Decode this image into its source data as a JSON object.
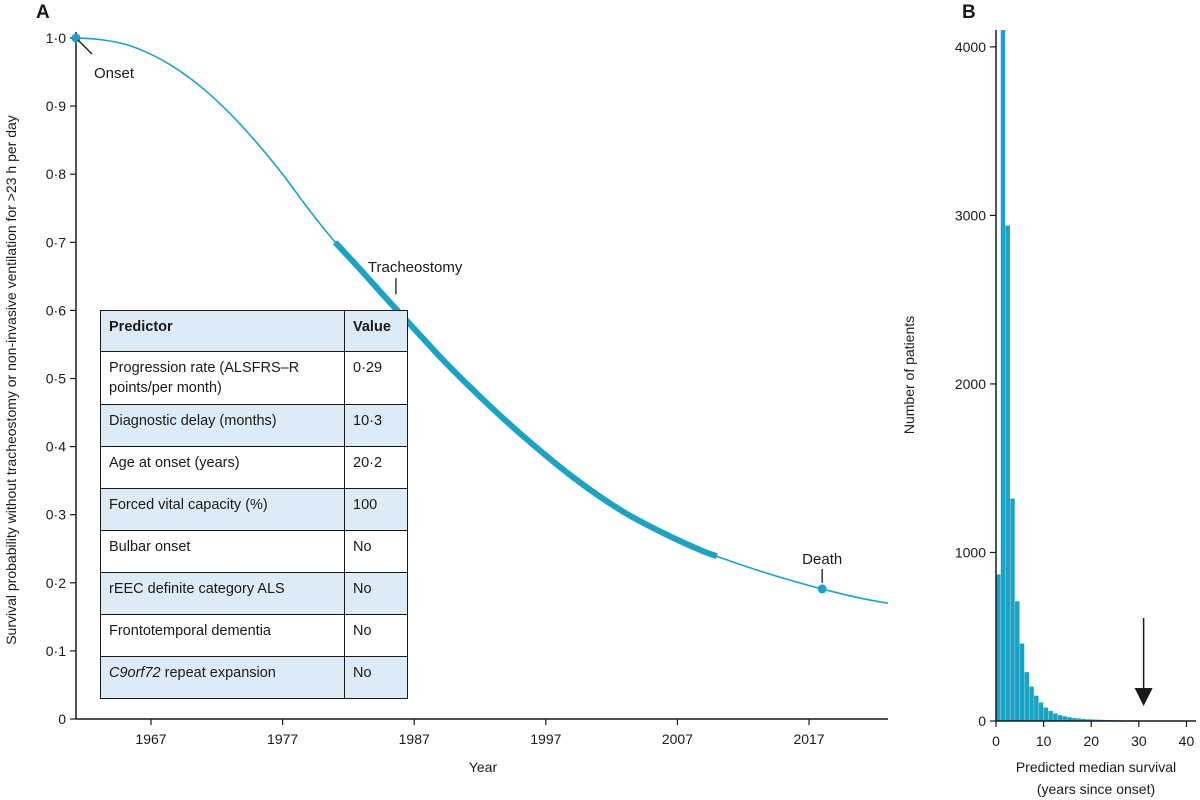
{
  "panel_a": {
    "letter": "A",
    "annotations": {
      "onset": "Onset",
      "tracheostomy": "Tracheostomy",
      "death": "Death"
    },
    "table": {
      "headers": [
        "Predictor",
        "Value"
      ],
      "rows": [
        {
          "predictor": "Progression rate (ALSFRS–R points/per month)",
          "value": "0·29",
          "shaded": false
        },
        {
          "predictor": "Diagnostic delay (months)",
          "value": "10·3",
          "shaded": true
        },
        {
          "predictor": "Age at onset (years)",
          "value": "20·2",
          "shaded": false
        },
        {
          "predictor": "Forced vital capacity (%)",
          "value": "100",
          "shaded": true
        },
        {
          "predictor": "Bulbar onset",
          "value": "No",
          "shaded": false
        },
        {
          "predictor": "rEEC definite category ALS",
          "value": "No",
          "shaded": true
        },
        {
          "predictor": "Frontotemporal dementia",
          "value": "No",
          "shaded": false
        },
        {
          "predictor": "C9orf72 repeat expansion",
          "value": "No",
          "shaded": true
        }
      ]
    }
  },
  "panel_b": {
    "letter": "B"
  },
  "colors": {
    "accent": "#1ba3c6",
    "text": "#1a1a1a",
    "table_shade": "#dcebf5"
  },
  "chart_data": [
    {
      "type": "line",
      "xlabel": "Year",
      "ylabel": "Survival probability without tracheostomy or non-invasive ventilation for >23 h per day",
      "xlim": [
        1961.3,
        2023
      ],
      "ylim": [
        0,
        1.0
      ],
      "xticks": [
        1967,
        1977,
        1987,
        1997,
        2007,
        2017
      ],
      "yticks": [
        0,
        0.1,
        0.2,
        0.3,
        0.4,
        0.5,
        0.6,
        0.7,
        0.8,
        0.9,
        1.0
      ],
      "ytick_labels": [
        "0",
        "0·1",
        "0·2",
        "0·3",
        "0·4",
        "0·5",
        "0·6",
        "0·7",
        "0·8",
        "0·9",
        "1·0"
      ],
      "x": [
        1961.3,
        1963,
        1965,
        1967,
        1969,
        1971,
        1973,
        1975,
        1977,
        1979,
        1981,
        1983,
        1985,
        1987,
        1989,
        1991,
        1993,
        1995,
        1997,
        1999,
        2001,
        2003,
        2005,
        2007,
        2009,
        2011,
        2013,
        2015,
        2017,
        2019,
        2021,
        2023
      ],
      "y": [
        1.0,
        0.998,
        0.991,
        0.976,
        0.954,
        0.925,
        0.889,
        0.847,
        0.8,
        0.748,
        0.7,
        0.658,
        0.615,
        0.573,
        0.531,
        0.492,
        0.455,
        0.42,
        0.387,
        0.356,
        0.328,
        0.303,
        0.282,
        0.263,
        0.246,
        0.232,
        0.219,
        0.207,
        0.196,
        0.186,
        0.177,
        0.17
      ],
      "highlight_range": [
        1981,
        2010
      ],
      "markers": [
        {
          "label": "Onset",
          "x": 1961.3,
          "y": 1.0
        },
        {
          "label": "Tracheostomy",
          "x": 1985,
          "y": 0.66
        },
        {
          "label": "Death",
          "x": 2018,
          "y": 0.195
        }
      ]
    },
    {
      "type": "bar",
      "xlabel": "Predicted median survival (years since onset)",
      "ylabel": "Number of patients",
      "xlim": [
        0,
        42
      ],
      "ylim": [
        0,
        4100
      ],
      "xticks": [
        0,
        10,
        20,
        30,
        40
      ],
      "yticks": [
        0,
        1000,
        2000,
        3000,
        4000
      ],
      "bin_width": 1,
      "bin_starts": [
        0,
        1,
        2,
        3,
        4,
        5,
        6,
        7,
        8,
        9,
        10,
        11,
        12,
        13,
        14,
        15,
        16,
        17,
        18,
        19,
        20,
        21,
        22,
        23,
        24,
        25,
        26,
        27,
        28,
        29,
        30,
        31,
        32,
        33,
        34,
        35,
        36,
        37,
        38,
        39,
        40
      ],
      "values": [
        870,
        4100,
        2940,
        1320,
        710,
        460,
        290,
        205,
        150,
        110,
        80,
        60,
        45,
        35,
        28,
        22,
        18,
        15,
        12,
        10,
        9,
        8,
        7,
        6,
        6,
        5,
        5,
        4,
        4,
        4,
        3,
        3,
        3,
        3,
        3,
        2,
        2,
        2,
        2,
        2,
        2
      ],
      "arrow_x": 31
    }
  ]
}
